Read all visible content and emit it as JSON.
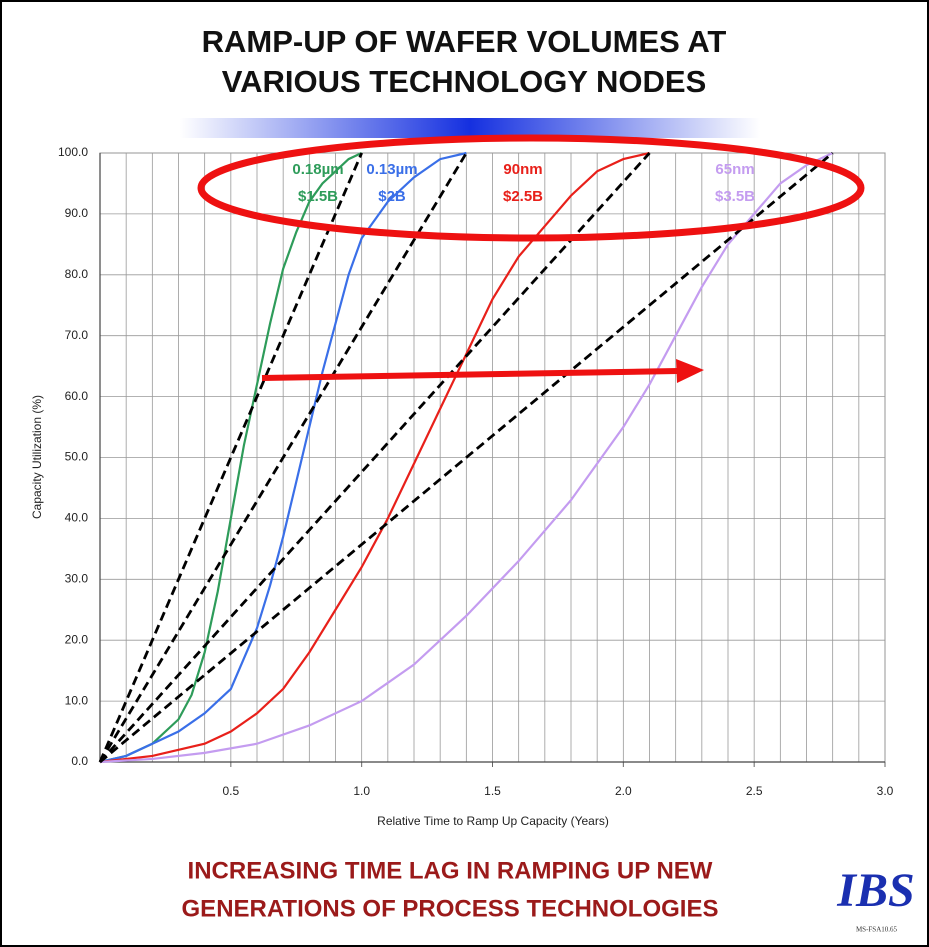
{
  "chart_data": {
    "type": "line",
    "title": [
      "RAMP-UP OF WAFER VOLUMES AT",
      "VARIOUS TECHNOLOGY NODES"
    ],
    "xlabel": "Relative Time to Ramp Up Capacity (Years)",
    "ylabel": "Capacity  Utilization (%)",
    "xlim": [
      0,
      3
    ],
    "ylim": [
      0,
      100
    ],
    "xticks": [
      {
        "value": 0.5,
        "label": "0.5"
      },
      {
        "value": 1,
        "label": "1.0"
      },
      {
        "value": 1.5,
        "label": "1.5"
      },
      {
        "value": 2,
        "label": "2.0"
      },
      {
        "value": 2.5,
        "label": "2.5"
      },
      {
        "value": 3,
        "label": "3.0"
      }
    ],
    "yticks": [
      {
        "value": 0,
        "label": "0.0"
      },
      {
        "value": 10,
        "label": "10.0"
      },
      {
        "value": 20,
        "label": "20.0"
      },
      {
        "value": 30,
        "label": "30.0"
      },
      {
        "value": 40,
        "label": "40.0"
      },
      {
        "value": 50,
        "label": "50.0"
      },
      {
        "value": 60,
        "label": "60.0"
      },
      {
        "value": 70,
        "label": "70.0"
      },
      {
        "value": 80,
        "label": "80.0"
      },
      {
        "value": 90,
        "label": "90.0"
      },
      {
        "value": 100,
        "label": "100.0"
      }
    ],
    "xgrid": [
      0,
      0.1,
      0.2,
      0.3,
      0.4,
      0.5,
      0.6,
      0.7,
      0.8,
      0.9,
      1,
      1.1,
      1.2,
      1.3,
      1.4,
      1.5,
      1.6,
      1.7,
      1.8,
      1.9,
      2,
      2.1,
      2.2,
      2.3,
      2.4,
      2.5,
      2.6,
      2.7,
      2.8,
      2.9,
      3
    ],
    "grid": true,
    "series": [
      {
        "name": "0.18µm",
        "cost": "$1.5B",
        "color": "#2e9c5a",
        "x": [
          0,
          0.1,
          0.2,
          0.3,
          0.35,
          0.4,
          0.45,
          0.5,
          0.55,
          0.6,
          0.65,
          0.7,
          0.75,
          0.8,
          0.85,
          0.9,
          0.95,
          1.0
        ],
        "values": [
          0,
          1,
          3,
          7,
          11,
          18,
          28,
          40,
          52,
          62,
          72,
          81,
          87,
          92,
          95,
          97,
          99,
          100
        ]
      },
      {
        "name": "0.13µm",
        "cost": "$2B",
        "color": "#3a6fe8",
        "x": [
          0,
          0.1,
          0.2,
          0.3,
          0.4,
          0.5,
          0.55,
          0.6,
          0.65,
          0.7,
          0.75,
          0.8,
          0.85,
          0.9,
          0.95,
          1.0,
          1.1,
          1.2,
          1.3,
          1.4
        ],
        "values": [
          0,
          1,
          3,
          5,
          8,
          12,
          17,
          22,
          29,
          37,
          46,
          55,
          64,
          72,
          80,
          86,
          92,
          96,
          99,
          100
        ]
      },
      {
        "name": "90nm",
        "cost": "$2.5B",
        "color": "#e8201a",
        "x": [
          0,
          0.2,
          0.4,
          0.5,
          0.6,
          0.7,
          0.8,
          0.9,
          1.0,
          1.1,
          1.2,
          1.3,
          1.4,
          1.5,
          1.6,
          1.7,
          1.8,
          1.9,
          2.0,
          2.1
        ],
        "values": [
          0,
          1,
          3,
          5,
          8,
          12,
          18,
          25,
          32,
          40,
          49,
          58,
          67,
          76,
          83,
          88,
          93,
          97,
          99,
          100
        ]
      },
      {
        "name": "65nm",
        "cost": "$3.5B",
        "color": "#c49cf0",
        "x": [
          0,
          0.2,
          0.4,
          0.6,
          0.8,
          1.0,
          1.2,
          1.4,
          1.6,
          1.8,
          2.0,
          2.1,
          2.2,
          2.3,
          2.4,
          2.5,
          2.6,
          2.7,
          2.8
        ],
        "values": [
          0,
          0.5,
          1.5,
          3,
          6,
          10,
          16,
          24,
          33,
          43,
          55,
          62,
          70,
          78,
          85,
          90,
          95,
          98,
          100
        ]
      },
      {
        "dash": true,
        "color": "#000000",
        "x": [
          0,
          1.0
        ],
        "values": [
          0,
          100
        ]
      },
      {
        "dash": true,
        "color": "#000000",
        "x": [
          0,
          1.4
        ],
        "values": [
          0,
          100
        ]
      },
      {
        "dash": true,
        "color": "#000000",
        "x": [
          0,
          2.1
        ],
        "values": [
          0,
          100
        ]
      },
      {
        "dash": true,
        "color": "#000000",
        "x": [
          0,
          2.8
        ],
        "values": [
          0,
          100
        ]
      }
    ],
    "footer": [
      "INCREASING TIME LAG IN RAMPING UP NEW",
      "GENERATIONS OF PROCESS TECHNOLOGIES"
    ],
    "logo": "IBS",
    "code": "MS-FSA10.65"
  }
}
